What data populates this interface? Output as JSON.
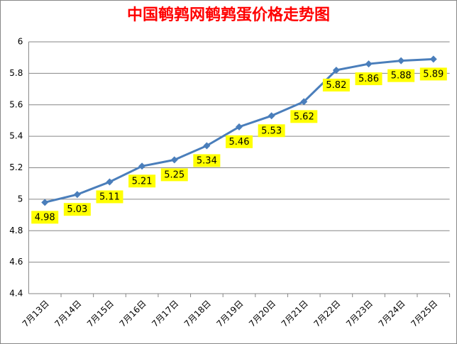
{
  "chart_data": {
    "type": "line",
    "title": "中国鹌鹑网鹌鹑蛋价格走势图",
    "categories": [
      "7月13日",
      "7月14日",
      "7月15日",
      "7月16日",
      "7月17日",
      "7月18日",
      "7月19日",
      "7月20日",
      "7月21日",
      "7月22日",
      "7月23日",
      "7月24日",
      "7月25日"
    ],
    "values": [
      4.98,
      5.03,
      5.11,
      5.21,
      5.25,
      5.34,
      5.46,
      5.53,
      5.62,
      5.82,
      5.86,
      5.88,
      5.89
    ],
    "color": "#4a7ebb",
    "label_color": "#ffff00",
    "ylim": [
      4.4,
      6
    ],
    "yticks": [
      4.4,
      4.6,
      4.8,
      5,
      5.2,
      5.4,
      5.6,
      5.8,
      6
    ],
    "grid": true
  }
}
